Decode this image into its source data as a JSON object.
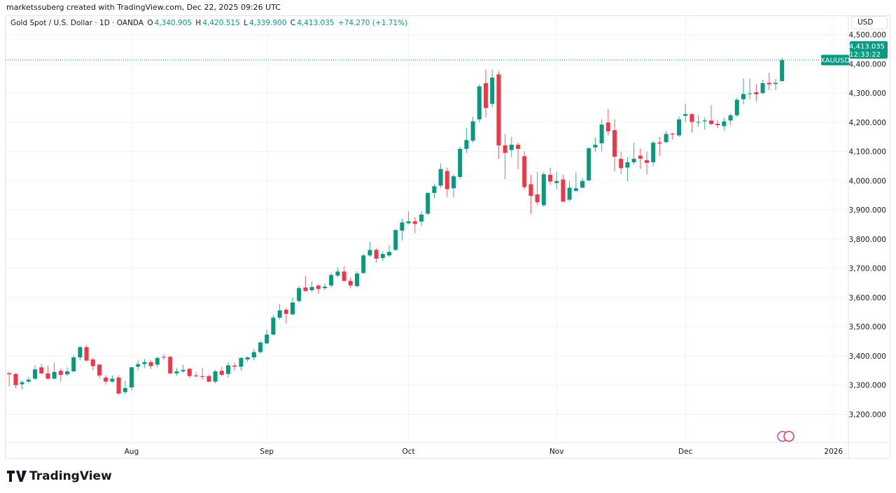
{
  "credit": "marketssuberg created with TradingView.com, Dec 22, 2025 09:26 UTC",
  "legend": {
    "symbol": "Gold Spot / U.S. Dollar · 1D · OANDA",
    "o_label": "O",
    "o": "4,340.905",
    "h_label": "H",
    "h": "4,420.515",
    "l_label": "L",
    "l": "4,339.900",
    "c_label": "C",
    "c": "4,413.035",
    "change": "+74.270 (+1.71%)"
  },
  "currency": "USD",
  "price_tag": {
    "ticker": "XAUUSD",
    "price": "4,413.035",
    "countdown": "12:33:22"
  },
  "brand": "TradingView",
  "colors": {
    "up": "#089981",
    "down": "#F23645",
    "grid": "#f0f3fa"
  },
  "chart_data": {
    "type": "candlestick",
    "title": "Gold Spot / U.S. Dollar · 1D · OANDA",
    "ylim": [
      3103,
      4566
    ],
    "y_ticks": [
      "3,200.000",
      "3,300.000",
      "3,400.000",
      "3,500.000",
      "3,600.000",
      "3,700.000",
      "3,800.000",
      "3,900.000",
      "4,000.000",
      "4,100.000",
      "4,200.000",
      "4,300.000",
      "4,400.000",
      "4,500.000"
    ],
    "x_ticks": [
      {
        "label": "Aug",
        "date": "Aug 1"
      },
      {
        "label": "Sep",
        "date": "Sep 1"
      },
      {
        "label": "Oct",
        "date": "Oct 1"
      },
      {
        "label": "Nov",
        "date": "Nov 3"
      },
      {
        "label": "Dec",
        "date": "Dec 1"
      },
      {
        "label": "2026",
        "date": "Jan 1"
      }
    ],
    "columns": [
      "date",
      "open",
      "high",
      "low",
      "close"
    ],
    "candles": [
      [
        "Jul 7",
        3341,
        3345,
        3296,
        3337
      ],
      [
        "Jul 8",
        3338,
        3342,
        3290,
        3300
      ],
      [
        "Jul 9",
        3303,
        3317,
        3285,
        3310
      ],
      [
        "Jul 10",
        3312,
        3328,
        3306,
        3319
      ],
      [
        "Jul 11",
        3322,
        3368,
        3318,
        3354
      ],
      [
        "Jul 14",
        3361,
        3374,
        3338,
        3340
      ],
      [
        "Jul 15",
        3340,
        3366,
        3320,
        3322
      ],
      [
        "Jul 16",
        3322,
        3377,
        3320,
        3345
      ],
      [
        "Jul 17",
        3349,
        3358,
        3312,
        3335
      ],
      [
        "Jul 18",
        3337,
        3361,
        3330,
        3347
      ],
      [
        "Jul 21",
        3347,
        3402,
        3345,
        3395
      ],
      [
        "Jul 22",
        3395,
        3433,
        3385,
        3430
      ],
      [
        "Jul 23",
        3430,
        3438,
        3381,
        3384
      ],
      [
        "Jul 24",
        3388,
        3394,
        3351,
        3365
      ],
      [
        "Jul 25",
        3370,
        3373,
        3323,
        3333
      ],
      [
        "Jul 28",
        3326,
        3334,
        3302,
        3312
      ],
      [
        "Jul 29",
        3312,
        3333,
        3308,
        3322
      ],
      [
        "Jul 30",
        3326,
        3334,
        3268,
        3271
      ],
      [
        "Jul 31",
        3276,
        3315,
        3268,
        3290
      ],
      [
        "Aug 1",
        3292,
        3363,
        3281,
        3361
      ],
      [
        "Aug 4",
        3363,
        3385,
        3350,
        3372
      ],
      [
        "Aug 5",
        3372,
        3390,
        3358,
        3379
      ],
      [
        "Aug 6",
        3379,
        3385,
        3355,
        3365
      ],
      [
        "Aug 7",
        3370,
        3398,
        3360,
        3393
      ],
      [
        "Aug 8",
        3397,
        3405,
        3385,
        3395
      ],
      [
        "Aug 11",
        3397,
        3400,
        3338,
        3340
      ],
      [
        "Aug 12",
        3340,
        3358,
        3332,
        3347
      ],
      [
        "Aug 13",
        3347,
        3370,
        3342,
        3352
      ],
      [
        "Aug 14",
        3356,
        3358,
        3324,
        3331
      ],
      [
        "Aug 15",
        3333,
        3345,
        3326,
        3331
      ],
      [
        "Aug 18",
        3331,
        3360,
        3318,
        3328
      ],
      [
        "Aug 19",
        3331,
        3335,
        3310,
        3312
      ],
      [
        "Aug 20",
        3312,
        3352,
        3306,
        3347
      ],
      [
        "Aug 21",
        3349,
        3362,
        3330,
        3335
      ],
      [
        "Aug 22",
        3338,
        3378,
        3325,
        3368
      ],
      [
        "Aug 25",
        3367,
        3377,
        3350,
        3363
      ],
      [
        "Aug 26",
        3363,
        3395,
        3350,
        3393
      ],
      [
        "Aug 27",
        3388,
        3398,
        3380,
        3395
      ],
      [
        "Aug 28",
        3395,
        3423,
        3385,
        3413
      ],
      [
        "Aug 29",
        3413,
        3453,
        3408,
        3446
      ],
      [
        "Sep 1",
        3443,
        3490,
        3440,
        3473
      ],
      [
        "Sep 2",
        3473,
        3540,
        3470,
        3531
      ],
      [
        "Sep 3",
        3531,
        3578,
        3525,
        3556
      ],
      [
        "Sep 4",
        3558,
        3565,
        3511,
        3544
      ],
      [
        "Sep 5",
        3542,
        3600,
        3540,
        3583
      ],
      [
        "Sep 8",
        3588,
        3640,
        3582,
        3632
      ],
      [
        "Sep 9",
        3634,
        3674,
        3620,
        3622
      ],
      [
        "Sep 10",
        3625,
        3655,
        3618,
        3636
      ],
      [
        "Sep 11",
        3641,
        3645,
        3613,
        3629
      ],
      [
        "Sep 12",
        3632,
        3648,
        3625,
        3637
      ],
      [
        "Sep 15",
        3641,
        3685,
        3635,
        3677
      ],
      [
        "Sep 16",
        3675,
        3703,
        3670,
        3689
      ],
      [
        "Sep 17",
        3689,
        3707,
        3655,
        3657
      ],
      [
        "Sep 18",
        3657,
        3668,
        3632,
        3641
      ],
      [
        "Sep 19",
        3639,
        3690,
        3635,
        3682
      ],
      [
        "Sep 22",
        3684,
        3750,
        3680,
        3744
      ],
      [
        "Sep 23",
        3744,
        3790,
        3738,
        3763
      ],
      [
        "Sep 24",
        3763,
        3770,
        3718,
        3733
      ],
      [
        "Sep 25",
        3735,
        3760,
        3725,
        3749
      ],
      [
        "Sep 26",
        3744,
        3780,
        3738,
        3756
      ],
      [
        "Sep 29",
        3763,
        3835,
        3760,
        3831
      ],
      [
        "Sep 30",
        3829,
        3870,
        3795,
        3857
      ],
      [
        "Oct 1",
        3854,
        3895,
        3850,
        3861
      ],
      [
        "Oct 2",
        3861,
        3875,
        3820,
        3852
      ],
      [
        "Oct 3",
        3860,
        3895,
        3845,
        3884
      ],
      [
        "Oct 6",
        3887,
        3960,
        3882,
        3958
      ],
      [
        "Oct 7",
        3958,
        3990,
        3940,
        3981
      ],
      [
        "Oct 8",
        3983,
        4059,
        3975,
        4040
      ],
      [
        "Oct 9",
        4033,
        4045,
        3945,
        3971
      ],
      [
        "Oct 10",
        3974,
        4022,
        3944,
        4015
      ],
      [
        "Oct 13",
        4013,
        4116,
        4005,
        4109
      ],
      [
        "Oct 14",
        4109,
        4180,
        4095,
        4139
      ],
      [
        "Oct 15",
        4137,
        4218,
        4130,
        4203
      ],
      [
        "Oct 16",
        4210,
        4330,
        4200,
        4323
      ],
      [
        "Oct 17",
        4334,
        4380,
        4217,
        4249
      ],
      [
        "Oct 20",
        4263,
        4381,
        4250,
        4353
      ],
      [
        "Oct 21",
        4364,
        4375,
        4075,
        4121
      ],
      [
        "Oct 22",
        4121,
        4160,
        4005,
        4095
      ],
      [
        "Oct 23",
        4105,
        4150,
        4080,
        4123
      ],
      [
        "Oct 24",
        4123,
        4130,
        4040,
        4109
      ],
      [
        "Oct 27",
        4084,
        4100,
        3970,
        3978
      ],
      [
        "Oct 28",
        3988,
        4020,
        3886,
        3948
      ],
      [
        "Oct 29",
        3953,
        4030,
        3915,
        3926
      ],
      [
        "Oct 30",
        3916,
        4030,
        3910,
        4022
      ],
      [
        "Oct 31",
        4020,
        4045,
        3985,
        3997
      ],
      [
        "Nov 3",
        3992,
        4030,
        3970,
        3999
      ],
      [
        "Nov 4",
        4004,
        4020,
        3930,
        3928
      ],
      [
        "Nov 5",
        3935,
        4000,
        3930,
        3976
      ],
      [
        "Nov 6",
        3965,
        4028,
        3962,
        3974
      ],
      [
        "Nov 7",
        3976,
        4010,
        3975,
        3999
      ],
      [
        "Nov 10",
        4001,
        4115,
        3998,
        4111
      ],
      [
        "Nov 11",
        4114,
        4148,
        4100,
        4123
      ],
      [
        "Nov 12",
        4128,
        4210,
        4100,
        4192
      ],
      [
        "Nov 13",
        4199,
        4245,
        4155,
        4169
      ],
      [
        "Nov 14",
        4173,
        4210,
        4032,
        4082
      ],
      [
        "Nov 17",
        4075,
        4100,
        4022,
        4043
      ],
      [
        "Nov 18",
        4045,
        4080,
        3998,
        4063
      ],
      [
        "Nov 19",
        4063,
        4130,
        4055,
        4075
      ],
      [
        "Nov 20",
        4086,
        4110,
        4040,
        4075
      ],
      [
        "Nov 21",
        4070,
        4100,
        4022,
        4061
      ],
      [
        "Nov 24",
        4063,
        4135,
        4050,
        4130
      ],
      [
        "Nov 25",
        4131,
        4150,
        4085,
        4127
      ],
      [
        "Nov 26",
        4132,
        4170,
        4128,
        4160
      ],
      [
        "Nov 27",
        4161,
        4165,
        4140,
        4158
      ],
      [
        "Nov 28",
        4155,
        4220,
        4150,
        4210
      ],
      [
        "Dec 1",
        4222,
        4264,
        4200,
        4228
      ],
      [
        "Dec 2",
        4228,
        4230,
        4165,
        4201
      ],
      [
        "Dec 3",
        4199,
        4225,
        4185,
        4201
      ],
      [
        "Dec 4",
        4203,
        4218,
        4175,
        4206
      ],
      [
        "Dec 5",
        4206,
        4258,
        4190,
        4194
      ],
      [
        "Dec 8",
        4195,
        4208,
        4180,
        4190
      ],
      [
        "Dec 9",
        4187,
        4215,
        4172,
        4203
      ],
      [
        "Dec 10",
        4206,
        4230,
        4190,
        4224
      ],
      [
        "Dec 11",
        4224,
        4285,
        4218,
        4277
      ],
      [
        "Dec 12",
        4279,
        4350,
        4262,
        4297
      ],
      [
        "Dec 15",
        4297,
        4350,
        4280,
        4299
      ],
      [
        "Dec 16",
        4303,
        4330,
        4272,
        4296
      ],
      [
        "Dec 17",
        4300,
        4345,
        4296,
        4334
      ],
      [
        "Dec 18",
        4335,
        4370,
        4310,
        4330
      ],
      [
        "Dec 19",
        4331,
        4348,
        4310,
        4335
      ],
      [
        "Dec 22",
        4340.905,
        4420.515,
        4339.9,
        4413.035
      ]
    ]
  }
}
